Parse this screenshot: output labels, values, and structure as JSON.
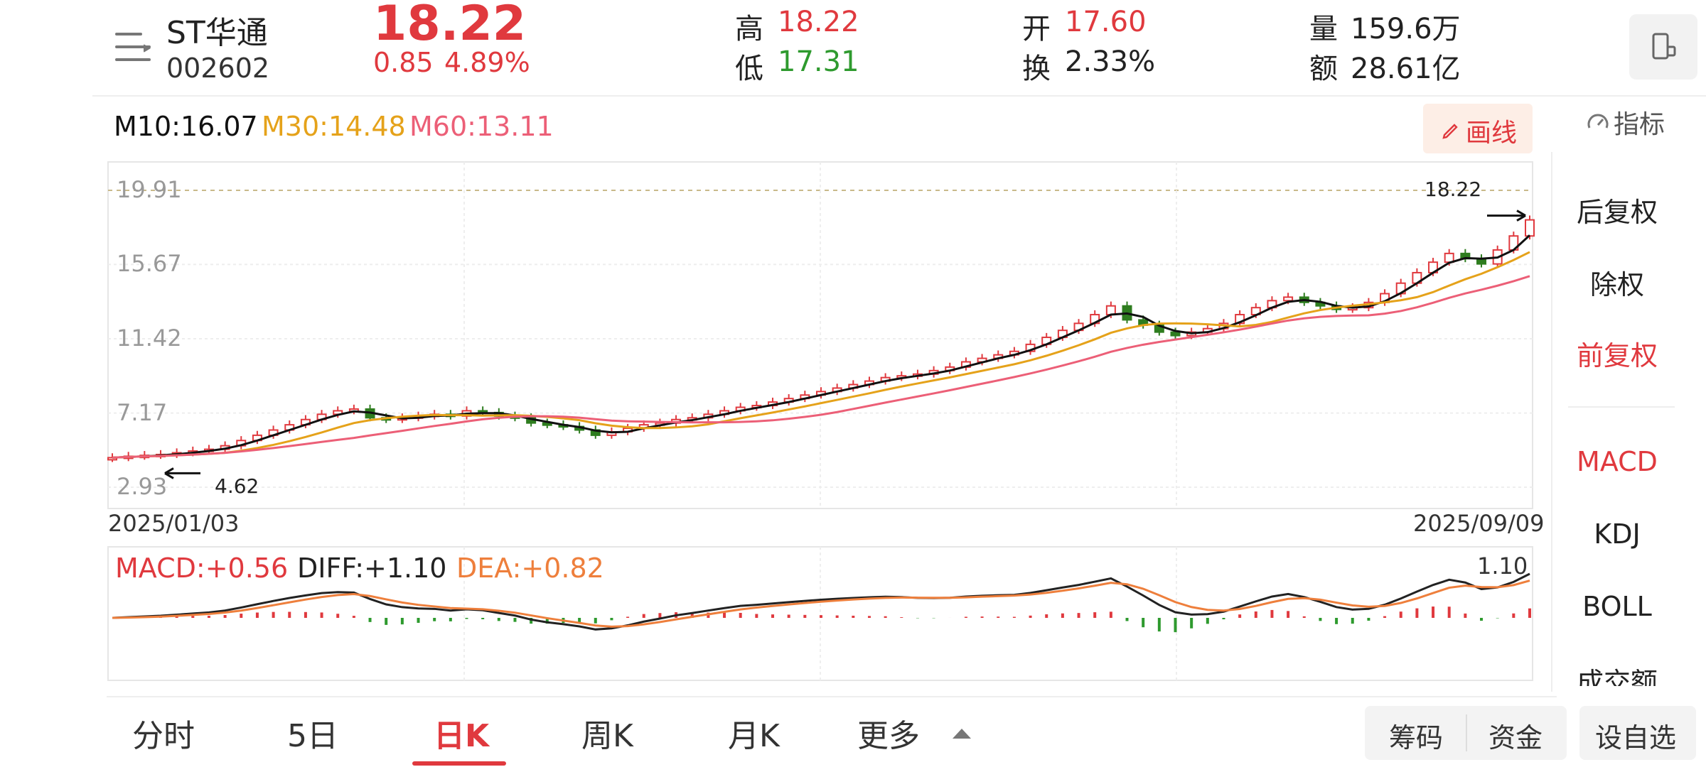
{
  "header": {
    "stock_name": "ST华通",
    "stock_code": "002602",
    "price": "18.22",
    "change": "0.85",
    "change_pct": "4.89%",
    "high_label": "高",
    "high_value": "18.22",
    "low_label": "低",
    "low_value": "17.31",
    "open_label": "开",
    "open_value": "17.60",
    "turnover_label": "换",
    "turnover_value": "2.33%",
    "volume_label": "量",
    "volume_value": "159.6万",
    "amount_label": "额",
    "amount_value": "28.61亿",
    "menu_icon": "menu-icon",
    "device_icon": "phone-rotate-icon"
  },
  "ma_legend": {
    "m10": "M10:16.07",
    "m30": "M30:14.48",
    "m60": "M60:13.11",
    "m10_color": "#111111",
    "m30_color": "#e5a21a",
    "m60_color": "#ec5f77"
  },
  "draw_button": {
    "label": "画线",
    "icon": "pencil-icon"
  },
  "indicator_button": {
    "label": "指标",
    "icon": "gauge-icon"
  },
  "side_menu": {
    "items": [
      {
        "label": "后复权",
        "active": false
      },
      {
        "label": "除权",
        "active": false
      },
      {
        "label": "前复权",
        "active": true
      }
    ],
    "indicators": [
      {
        "label": "MACD",
        "active": true
      },
      {
        "label": "KDJ",
        "active": false
      },
      {
        "label": "BOLL",
        "active": false
      },
      {
        "label": "成交额",
        "active": false
      }
    ]
  },
  "chart_data": [
    {
      "type": "candlestick",
      "y_ticks": [
        "19.91",
        "15.67",
        "11.42",
        "7.17",
        "2.93"
      ],
      "ylim": [
        2.93,
        19.91
      ],
      "x_start": "2025/01/03",
      "x_end": "2025/09/09",
      "max_label": "18.22",
      "min_label": "4.62",
      "last_close": 18.22,
      "close_estimate": [
        4.62,
        4.7,
        4.75,
        4.8,
        4.9,
        5.0,
        5.1,
        5.3,
        5.6,
        5.9,
        6.2,
        6.5,
        6.8,
        7.1,
        7.3,
        7.4,
        6.9,
        6.8,
        6.9,
        7.0,
        7.1,
        7.0,
        7.3,
        7.2,
        7.0,
        6.9,
        6.6,
        6.5,
        6.4,
        6.2,
        5.9,
        6.1,
        6.3,
        6.5,
        6.6,
        6.8,
        6.9,
        7.1,
        7.3,
        7.5,
        7.6,
        7.8,
        8.0,
        8.2,
        8.4,
        8.6,
        8.8,
        9.0,
        9.2,
        9.3,
        9.4,
        9.6,
        9.8,
        10.1,
        10.3,
        10.5,
        10.7,
        11.1,
        11.5,
        11.9,
        12.3,
        12.8,
        13.3,
        12.5,
        12.2,
        11.8,
        11.6,
        11.8,
        12.0,
        12.3,
        12.8,
        13.2,
        13.6,
        13.8,
        13.5,
        13.3,
        13.1,
        13.2,
        13.5,
        14.0,
        14.6,
        15.2,
        15.8,
        16.3,
        16.0,
        15.7,
        16.5,
        17.3,
        18.22
      ]
    },
    {
      "type": "macd",
      "macd_label": "MACD:+0.56",
      "diff_label": "DIFF:+1.10",
      "dea_label": "DEA:+0.82",
      "max_label": "1.10",
      "macd_color": "#e0393e",
      "diff_color": "#222222",
      "dea_color": "#ee7f3c"
    }
  ],
  "bottom_tabs": [
    {
      "label": "分时",
      "active": false
    },
    {
      "label": "5日",
      "active": false
    },
    {
      "label": "日K",
      "active": true
    },
    {
      "label": "周K",
      "active": false
    },
    {
      "label": "月K",
      "active": false
    },
    {
      "label": "更多",
      "active": false
    }
  ],
  "bottom_buttons": {
    "chips": "筹码",
    "funds": "资金",
    "watchlist": "设自选"
  }
}
